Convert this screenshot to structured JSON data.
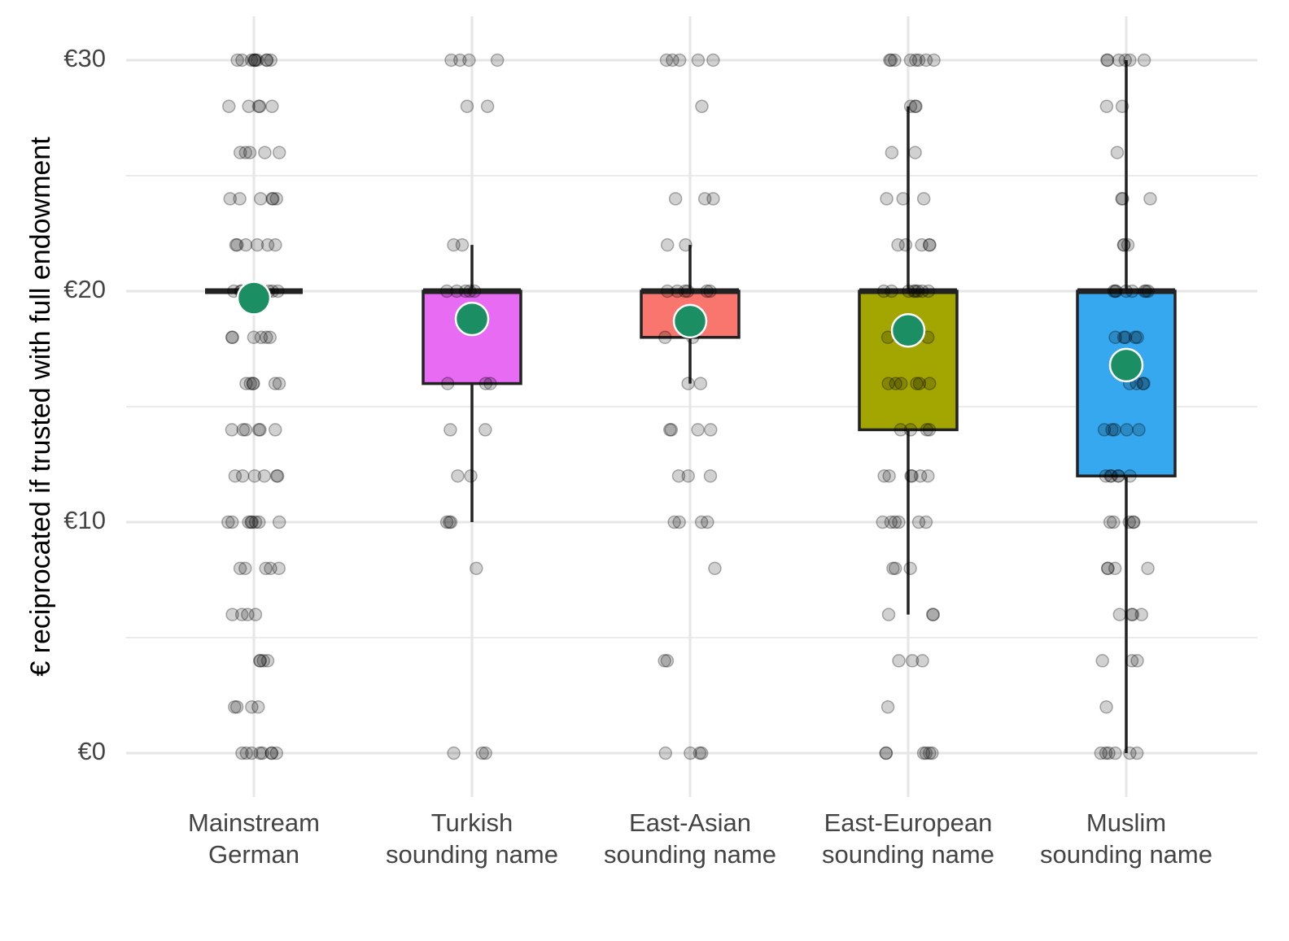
{
  "chart_data": {
    "type": "box",
    "y_label": "€ reciprocated if trusted with full endowment",
    "categories": [
      "Mainstream\nGerman",
      "Turkish\nsounding name",
      "East-Asian\nsounding name",
      "East-European\nsounding name",
      "Muslim\nsounding name"
    ],
    "ylim": [
      -1.9,
      31.9
    ],
    "yticks": [
      {
        "value": 0,
        "label": "€0"
      },
      {
        "value": 10,
        "label": "€10"
      },
      {
        "value": 20,
        "label": "€20"
      },
      {
        "value": 30,
        "label": "€30"
      }
    ],
    "minor_yticks": [
      5,
      15,
      25
    ],
    "grid": true,
    "mean_color": "#1b8f63",
    "point_color": "#000000",
    "boxes": [
      {
        "whisker_low": 20,
        "q1": 20,
        "median": 20,
        "q3": 20,
        "whisker_high": 20,
        "mean": 19.7,
        "color": "#000000",
        "points": [
          30,
          30,
          30,
          30,
          30,
          30,
          30,
          30,
          30,
          30,
          28,
          28,
          28,
          28,
          28,
          26,
          26,
          26,
          26,
          26,
          24,
          24,
          24,
          24,
          24,
          24,
          22,
          22,
          22,
          22,
          22,
          22,
          20,
          20,
          20,
          20,
          20,
          20,
          20,
          20,
          20,
          20,
          18,
          18,
          18,
          18,
          18,
          18,
          16,
          16,
          16,
          16,
          16,
          16,
          14,
          14,
          14,
          14,
          14,
          14,
          12,
          12,
          12,
          12,
          12,
          12,
          10,
          10,
          10,
          10,
          10,
          10,
          10,
          10,
          8,
          8,
          8,
          8,
          8,
          6,
          6,
          6,
          6,
          4,
          4,
          4,
          4,
          2,
          2,
          2,
          2,
          0,
          0,
          0,
          0,
          0,
          0,
          0,
          0
        ]
      },
      {
        "whisker_low": 10,
        "q1": 16,
        "median": 20,
        "q3": 20,
        "whisker_high": 22,
        "mean": 18.8,
        "color": "#e76bf3",
        "points": [
          30,
          30,
          30,
          30,
          28,
          28,
          22,
          22,
          20,
          20,
          20,
          20,
          20,
          16,
          16,
          16,
          14,
          14,
          12,
          12,
          10,
          10,
          10,
          8,
          0,
          0,
          0
        ]
      },
      {
        "whisker_low": 16,
        "q1": 18,
        "median": 20,
        "q3": 20,
        "whisker_high": 22,
        "mean": 18.7,
        "color": "#f8766d",
        "points": [
          30,
          30,
          30,
          30,
          30,
          28,
          24,
          24,
          24,
          22,
          22,
          20,
          20,
          20,
          20,
          20,
          20,
          18,
          18,
          16,
          16,
          14,
          14,
          14,
          14,
          12,
          12,
          12,
          10,
          10,
          10,
          10,
          8,
          4,
          4,
          0,
          0,
          0,
          0
        ]
      },
      {
        "whisker_low": 6,
        "q1": 14,
        "median": 20,
        "q3": 20,
        "whisker_high": 28,
        "mean": 18.3,
        "color": "#a3a500",
        "points": [
          30,
          30,
          30,
          30,
          30,
          30,
          30,
          30,
          28,
          28,
          28,
          26,
          26,
          24,
          24,
          24,
          22,
          22,
          22,
          22,
          22,
          20,
          20,
          20,
          20,
          20,
          20,
          20,
          20,
          18,
          18,
          16,
          16,
          16,
          16,
          16,
          16,
          14,
          14,
          14,
          14,
          12,
          12,
          12,
          12,
          12,
          12,
          10,
          10,
          10,
          10,
          10,
          10,
          8,
          8,
          8,
          6,
          6,
          6,
          4,
          4,
          4,
          2,
          0,
          0,
          0,
          0,
          0,
          0
        ]
      },
      {
        "whisker_low": 0,
        "q1": 12,
        "median": 20,
        "q3": 20,
        "whisker_high": 30,
        "mean": 16.8,
        "color": "#35a8f0",
        "points": [
          30,
          30,
          30,
          30,
          30,
          30,
          28,
          28,
          26,
          24,
          24,
          24,
          22,
          22,
          22,
          20,
          20,
          20,
          20,
          20,
          20,
          20,
          20,
          18,
          18,
          18,
          18,
          18,
          16,
          16,
          16,
          16,
          14,
          14,
          14,
          14,
          14,
          12,
          12,
          12,
          12,
          12,
          12,
          10,
          10,
          10,
          10,
          10,
          8,
          8,
          8,
          8,
          6,
          6,
          6,
          6,
          4,
          4,
          4,
          2,
          0,
          0,
          0,
          0,
          0,
          0
        ]
      }
    ]
  }
}
